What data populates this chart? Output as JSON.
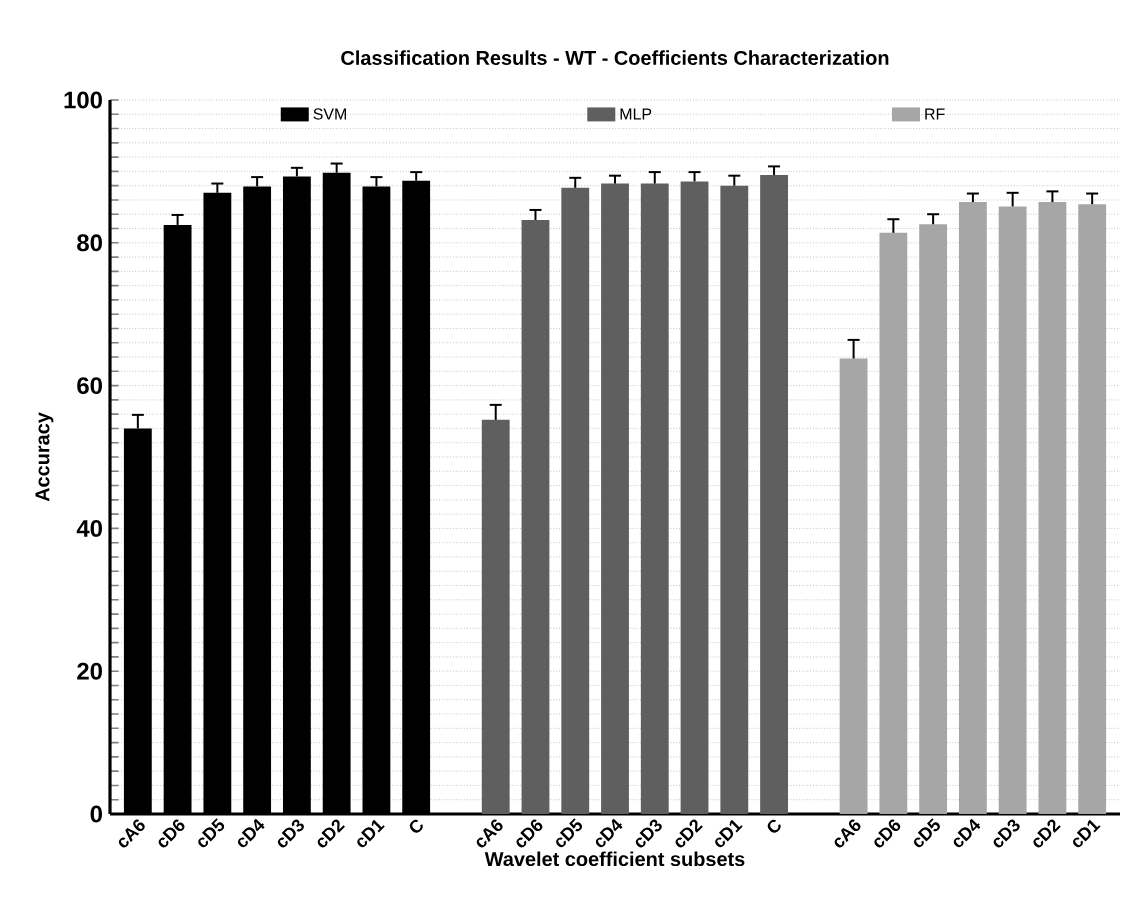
{
  "chart_data": {
    "type": "bar",
    "title": "Classification Results  - WT - Coefficients Characterization",
    "xlabel": "Wavelet coefficient subsets",
    "ylabel": "Accuracy",
    "categories": [
      "cA6",
      "cD6",
      "cD5",
      "cD4",
      "cD3",
      "cD2",
      "cD1",
      "C",
      null,
      "cA6",
      "cD6",
      "cD5",
      "cD4",
      "cD3",
      "cD2",
      "cD1",
      "C",
      null,
      "cA6",
      "cD6",
      "cD5",
      "cD4",
      "cD3",
      "cD2",
      "cD1"
    ],
    "series": [
      {
        "name": "SVM",
        "color": "#000000",
        "values": [
          54.0,
          82.5,
          87.0,
          87.9,
          89.3,
          89.8,
          87.9,
          88.7,
          null,
          null,
          null,
          null,
          null,
          null,
          null,
          null,
          null,
          null,
          null,
          null,
          null,
          null,
          null,
          null,
          null
        ],
        "errors": [
          [
            54.0,
            55.9
          ],
          [
            82.5,
            83.9
          ],
          [
            87.0,
            88.3
          ],
          [
            87.9,
            89.2
          ],
          [
            89.3,
            90.5
          ],
          [
            89.8,
            91.1
          ],
          [
            87.9,
            89.2
          ],
          [
            88.7,
            89.9
          ],
          null,
          null,
          null,
          null,
          null,
          null,
          null,
          null,
          null,
          null,
          null,
          null,
          null,
          null,
          null,
          null,
          null
        ]
      },
      {
        "name": "MLP",
        "color": "#5f5f5f",
        "values": [
          null,
          null,
          null,
          null,
          null,
          null,
          null,
          null,
          null,
          55.2,
          83.2,
          87.7,
          88.3,
          88.3,
          88.6,
          88.0,
          89.5,
          null,
          null,
          null,
          null,
          null,
          null,
          null,
          null
        ],
        "errors": [
          null,
          null,
          null,
          null,
          null,
          null,
          null,
          null,
          null,
          [
            55.2,
            57.3
          ],
          [
            83.2,
            84.6
          ],
          [
            87.7,
            89.1
          ],
          [
            88.3,
            89.4
          ],
          [
            88.3,
            89.9
          ],
          [
            88.6,
            89.9
          ],
          [
            88.0,
            89.4
          ],
          [
            89.5,
            90.7
          ],
          null,
          null,
          null,
          null,
          null,
          null,
          null,
          null
        ]
      },
      {
        "name": "RF",
        "color": "#a6a6a6",
        "values": [
          null,
          null,
          null,
          null,
          null,
          null,
          null,
          null,
          null,
          null,
          null,
          null,
          null,
          null,
          null,
          null,
          null,
          null,
          63.8,
          81.4,
          82.6,
          85.7,
          85.1,
          85.7,
          85.4
        ],
        "errors": [
          null,
          null,
          null,
          null,
          null,
          null,
          null,
          null,
          null,
          null,
          null,
          null,
          null,
          null,
          null,
          null,
          null,
          null,
          [
            63.8,
            66.4
          ],
          [
            81.4,
            83.3
          ],
          [
            82.6,
            84.0
          ],
          [
            85.7,
            86.9
          ],
          [
            85.1,
            87.0
          ],
          [
            85.7,
            87.2
          ],
          [
            85.4,
            86.9
          ]
        ]
      }
    ],
    "ylim": [
      0,
      100
    ],
    "yticks": [
      0,
      {
        "value": 2,
        "label": null
      },
      {
        "value": 4,
        "label": null
      },
      {
        "value": 6,
        "label": null
      },
      {
        "value": 8,
        "label": null
      },
      {
        "value": 10,
        "label": null
      },
      {
        "value": 12,
        "label": null
      },
      {
        "value": 14,
        "label": null
      },
      {
        "value": 16,
        "label": null
      },
      {
        "value": 18,
        "label": null
      },
      20,
      {
        "value": 22,
        "label": null
      },
      {
        "value": 24,
        "label": null
      },
      {
        "value": 26,
        "label": null
      },
      {
        "value": 28,
        "label": null
      },
      {
        "value": 30,
        "label": null
      },
      {
        "value": 32,
        "label": null
      },
      {
        "value": 34,
        "label": null
      },
      {
        "value": 36,
        "label": null
      },
      {
        "value": 38,
        "label": null
      },
      40,
      {
        "value": 42,
        "label": null
      },
      {
        "value": 44,
        "label": null
      },
      {
        "value": 46,
        "label": null
      },
      {
        "value": 48,
        "label": null
      },
      {
        "value": 50,
        "label": null
      },
      {
        "value": 52,
        "label": null
      },
      {
        "value": 54,
        "label": null
      },
      {
        "value": 56,
        "label": null
      },
      {
        "value": 58,
        "label": null
      },
      60,
      {
        "value": 62,
        "label": null
      },
      {
        "value": 64,
        "label": null
      },
      {
        "value": 66,
        "label": null
      },
      {
        "value": 68,
        "label": null
      },
      {
        "value": 70,
        "label": null
      },
      {
        "value": 72,
        "label": null
      },
      {
        "value": 74,
        "label": null
      },
      {
        "value": 76,
        "label": null
      },
      {
        "value": 78,
        "label": null
      },
      80,
      {
        "value": 82,
        "label": null
      },
      {
        "value": 84,
        "label": null
      },
      {
        "value": 86,
        "label": null
      },
      {
        "value": 88,
        "label": null
      },
      {
        "value": 90,
        "label": null
      },
      {
        "value": 92,
        "label": null
      },
      {
        "value": 94,
        "label": null
      },
      {
        "value": 96,
        "label": null
      },
      {
        "value": 98,
        "label": null
      },
      100
    ],
    "grid": "y",
    "legend": "top"
  }
}
